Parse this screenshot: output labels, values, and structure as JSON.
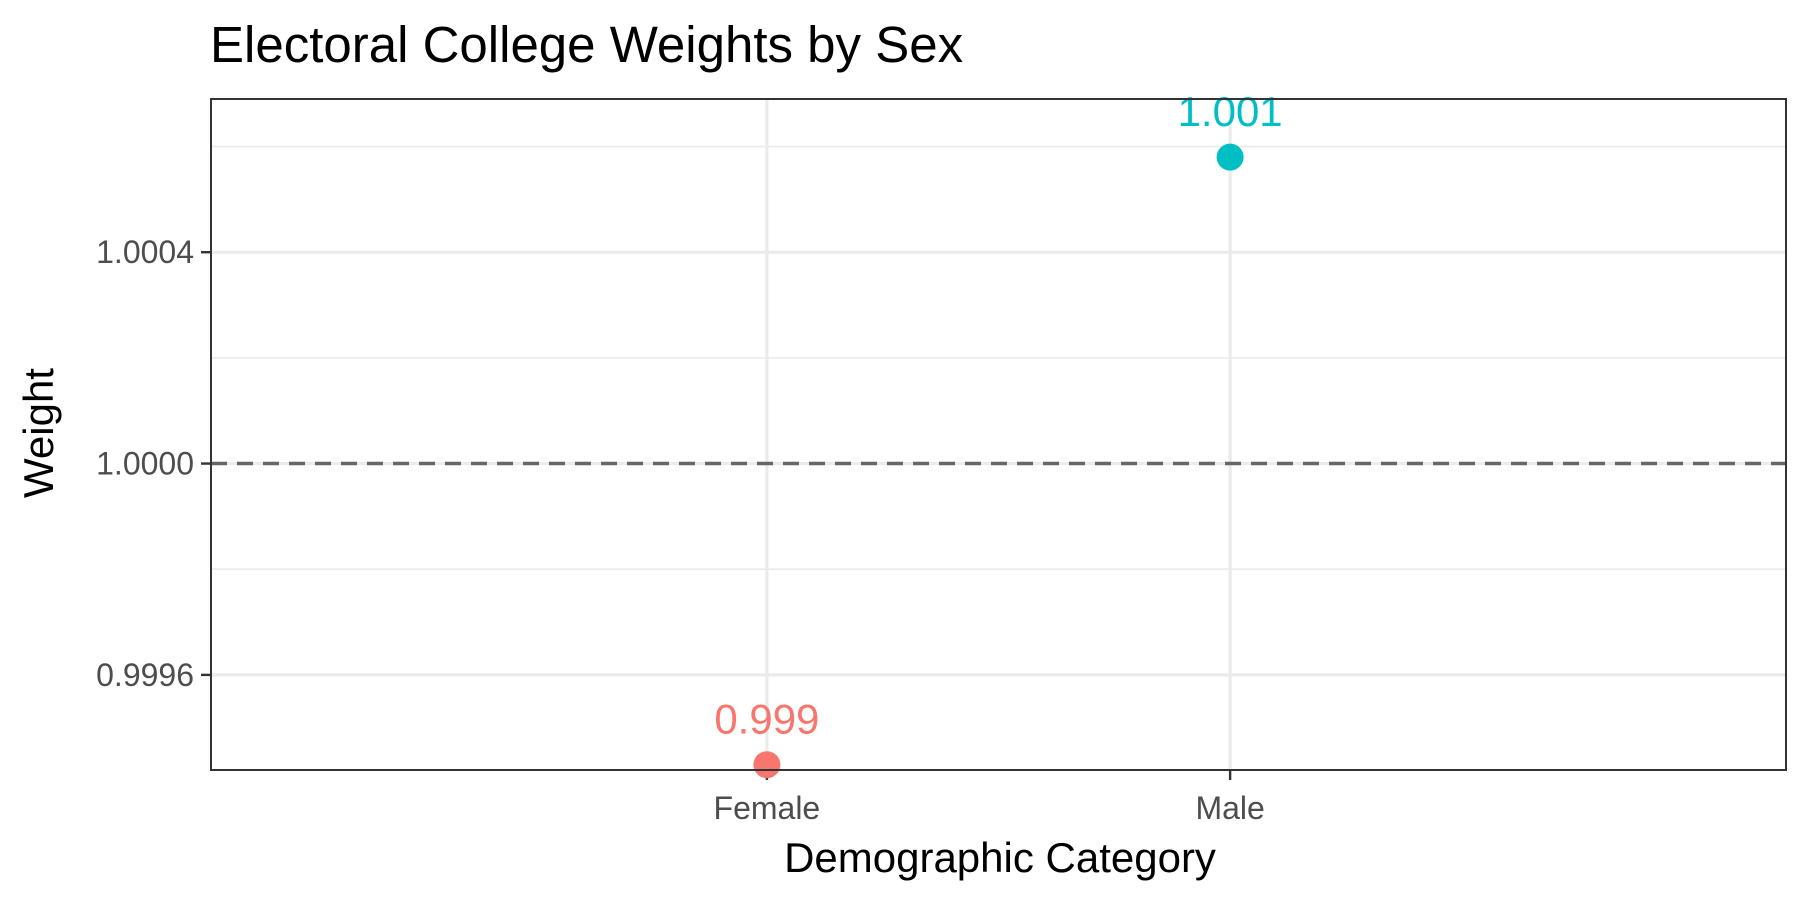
{
  "chart_data": {
    "type": "scatter",
    "title": "Electoral College Weights by Sex",
    "xlabel": "Demographic Category",
    "ylabel": "Weight",
    "categories": [
      "Female",
      "Male"
    ],
    "values": [
      0.99943,
      1.00058
    ],
    "point_labels": [
      "0.999",
      "1.001"
    ],
    "colors": [
      "#F8766D",
      "#00BFC4"
    ],
    "reference_line": 1.0,
    "ylim": [
      0.99942,
      1.00069
    ],
    "yticks": [
      0.9996,
      1.0,
      1.0004
    ],
    "ytick_labels": [
      "0.9996",
      "1.0000",
      "1.0004"
    ],
    "grid": true,
    "legend": "none"
  }
}
